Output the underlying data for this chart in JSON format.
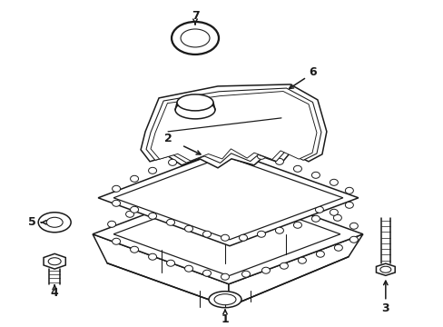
{
  "background_color": "#ffffff",
  "line_color": "#1a1a1a",
  "line_width": 1.1,
  "figsize": [
    4.89,
    3.6
  ],
  "dpi": 100
}
